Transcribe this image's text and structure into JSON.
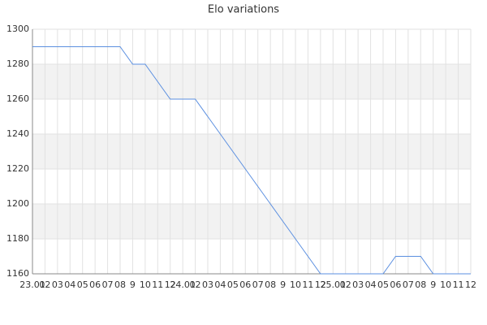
{
  "chart_data": {
    "type": "line",
    "title": "Elo variations",
    "categories": [
      "23.01",
      "02",
      "03",
      "04",
      "05",
      "06",
      "07",
      "08",
      "9",
      "10",
      "11",
      "12",
      "24.01",
      "02",
      "03",
      "04",
      "05",
      "06",
      "07",
      "08",
      "9",
      "10",
      "11",
      "12",
      "25.01",
      "02",
      "03",
      "04",
      "05",
      "06",
      "07",
      "08",
      "9",
      "10",
      "11",
      "12"
    ],
    "series": [
      {
        "color": "#5b8fe0",
        "values": [
          1290,
          1290,
          1290,
          1290,
          1290,
          1290,
          1290,
          1290,
          1280,
          1280,
          1270,
          1260,
          1260,
          1260,
          1250,
          1240,
          1230,
          1220,
          1210,
          1200,
          1190,
          1180,
          1170,
          1160,
          1160,
          1160,
          1160,
          1160,
          1160,
          1170,
          1170,
          1170,
          1160,
          1160,
          1160,
          1160
        ]
      }
    ],
    "ylim": [
      1160,
      1300
    ],
    "yticks": [
      1160,
      1180,
      1200,
      1220,
      1240,
      1260,
      1280,
      1300
    ],
    "grid": true
  }
}
